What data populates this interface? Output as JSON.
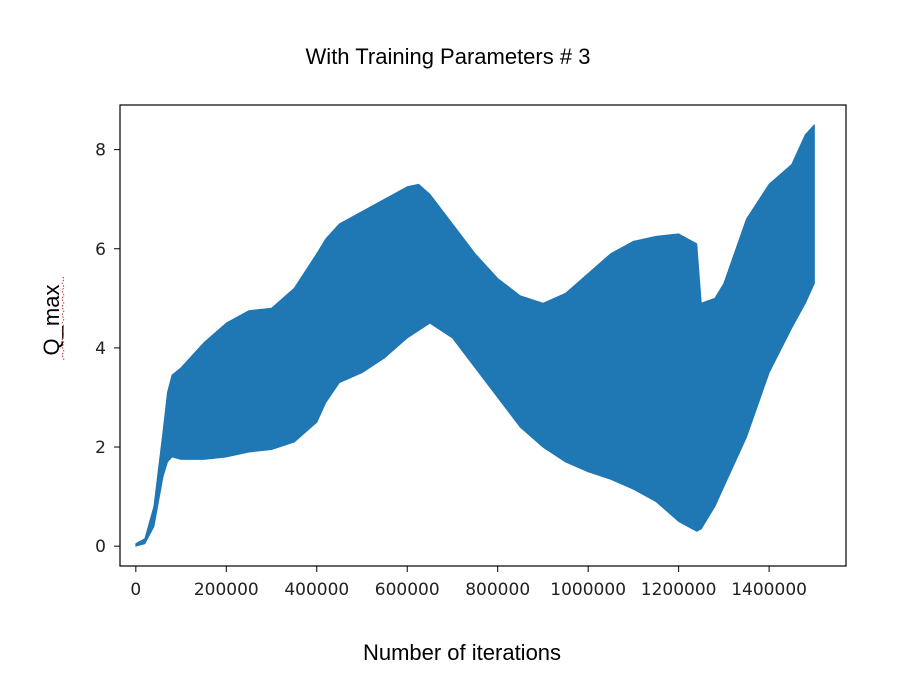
{
  "chart_data": {
    "type": "area",
    "title": "With Training Parameters # 3",
    "xlabel": "Number of iterations",
    "ylabel": "Q_max",
    "xlim": [
      -35000,
      1570000
    ],
    "ylim": [
      -0.4,
      8.9
    ],
    "x_ticks": [
      0,
      200000,
      400000,
      600000,
      800000,
      1000000,
      1200000,
      1400000
    ],
    "x_tick_labels": [
      "0",
      "200000",
      "400000",
      "600000",
      "800000",
      "1000000",
      "1200000",
      "1400000"
    ],
    "y_ticks": [
      0,
      2,
      4,
      6,
      8
    ],
    "y_tick_labels": [
      "0",
      "2",
      "4",
      "6",
      "8"
    ],
    "grid": false,
    "legend": false,
    "series": [
      {
        "color": "#1f77b4",
        "x": [
          0,
          20000,
          40000,
          60000,
          70000,
          80000,
          100000,
          150000,
          200000,
          250000,
          300000,
          350000,
          400000,
          420000,
          450000,
          500000,
          550000,
          600000,
          625000,
          650000,
          700000,
          750000,
          800000,
          850000,
          900000,
          950000,
          1000000,
          1050000,
          1100000,
          1150000,
          1200000,
          1240000,
          1250000,
          1280000,
          1300000,
          1350000,
          1400000,
          1450000,
          1480000,
          1500000
        ],
        "upper": [
          0.05,
          0.15,
          0.8,
          2.3,
          3.1,
          3.45,
          3.6,
          4.1,
          4.5,
          4.75,
          4.8,
          5.2,
          5.9,
          6.2,
          6.5,
          6.75,
          7.0,
          7.25,
          7.3,
          7.1,
          6.5,
          5.9,
          5.4,
          5.05,
          4.9,
          5.1,
          5.5,
          5.9,
          6.15,
          6.25,
          6.3,
          6.1,
          4.9,
          5.0,
          5.3,
          6.6,
          7.3,
          7.7,
          8.3,
          8.5
        ],
        "lower": [
          0.0,
          0.05,
          0.4,
          1.4,
          1.7,
          1.8,
          1.75,
          1.75,
          1.8,
          1.9,
          1.95,
          2.1,
          2.5,
          2.9,
          3.3,
          3.5,
          3.8,
          4.2,
          4.35,
          4.5,
          4.2,
          3.6,
          3.0,
          2.4,
          2.0,
          1.7,
          1.5,
          1.35,
          1.15,
          0.9,
          0.5,
          0.3,
          0.35,
          0.8,
          1.2,
          2.2,
          3.5,
          4.4,
          4.9,
          5.3
        ]
      }
    ]
  }
}
